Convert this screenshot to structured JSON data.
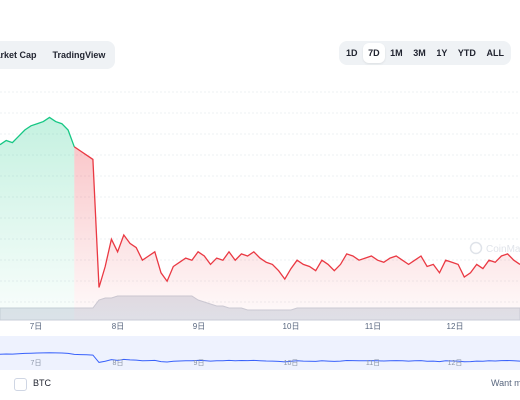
{
  "toolbar": {
    "view_tabs": [
      "Market Cap",
      "TradingView"
    ],
    "range_buttons": [
      "1D",
      "7D",
      "1M",
      "3M",
      "1Y",
      "YTD",
      "ALL"
    ],
    "active_range": "7D"
  },
  "chart_data": {
    "type": "area",
    "x_ticks": [
      "7日",
      "8日",
      "9日",
      "10日",
      "11日",
      "12日"
    ],
    "watermark": "CoinMarketCap",
    "grid": true,
    "series": [
      {
        "values": [
          73,
          75,
          74,
          77,
          80,
          82,
          83,
          84,
          86,
          84,
          83,
          80,
          72,
          70,
          68,
          66,
          5,
          15,
          28,
          22,
          30,
          26,
          24,
          18,
          20,
          22,
          12,
          8,
          15,
          17,
          19,
          18,
          22,
          20,
          16,
          19,
          18,
          22,
          18,
          21,
          20,
          22,
          19,
          17,
          16,
          13,
          9,
          14,
          18,
          16,
          15,
          13,
          18,
          16,
          13,
          16,
          21,
          20,
          18,
          19,
          20,
          18,
          17,
          19,
          20,
          18,
          16,
          18,
          20,
          15,
          16,
          12,
          18,
          17,
          16,
          10,
          12,
          16,
          14,
          18,
          17,
          20,
          21,
          18,
          16
        ]
      },
      {
        "values": [
          6,
          6,
          6,
          6,
          6,
          6,
          6,
          6,
          6,
          6,
          6,
          6,
          6,
          6,
          6,
          6,
          10,
          11,
          11,
          12,
          12,
          12,
          12,
          12,
          12,
          12,
          12,
          12,
          12,
          12,
          12,
          12,
          10,
          9,
          8,
          7,
          7,
          6,
          6,
          6,
          5,
          5,
          5,
          5,
          5,
          5,
          5,
          5,
          6,
          6,
          6,
          6,
          6,
          6,
          6,
          6,
          6,
          6,
          6,
          6,
          6,
          6,
          6,
          6,
          6,
          6,
          6,
          6,
          6,
          6,
          6,
          6,
          6,
          6,
          6,
          6,
          6,
          6,
          6,
          6,
          6,
          6,
          6,
          6,
          6
        ]
      }
    ]
  },
  "bottom": {
    "compare_label": "BTC",
    "want_text": "Want m"
  },
  "colors": {
    "up": "#16c784",
    "down": "#ea3943",
    "navigator_line": "#3861fb",
    "toolbar_bg": "#eff2f5"
  }
}
